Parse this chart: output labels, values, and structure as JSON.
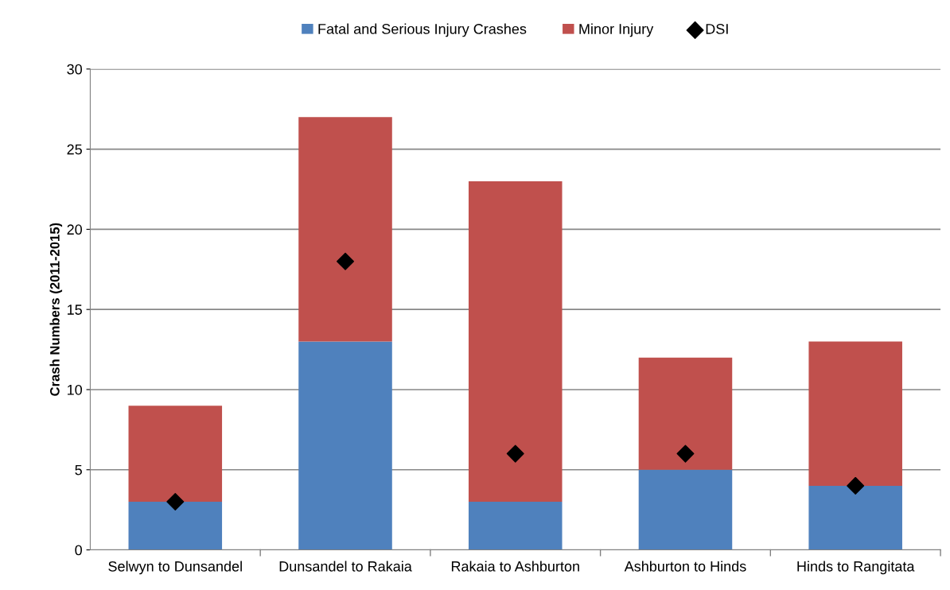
{
  "chart_data": {
    "type": "bar",
    "ylabel": "Crash Numbers (2011-2015)",
    "categories": [
      "Selwyn to Dunsandel",
      "Dunsandel to Rakaia",
      "Rakaia to Ashburton",
      "Ashburton to Hinds",
      "Hinds to Rangitata"
    ],
    "stacked": true,
    "series": [
      {
        "name": "Fatal and Serious Injury Crashes",
        "color": "#4f81bd",
        "values": [
          3,
          13,
          3,
          5,
          4
        ]
      },
      {
        "name": "Minor Injury",
        "color": "#c0504d",
        "values": [
          6,
          14,
          20,
          7,
          9
        ]
      },
      {
        "name": "DSI",
        "color": "#000000",
        "type": "scatter",
        "marker": "diamond",
        "values": [
          3,
          18,
          6,
          6,
          4
        ]
      }
    ],
    "ylim": [
      0,
      30
    ],
    "yticks": [
      0,
      5,
      10,
      15,
      20,
      25,
      30
    ],
    "grid": "y",
    "legend": "top"
  }
}
